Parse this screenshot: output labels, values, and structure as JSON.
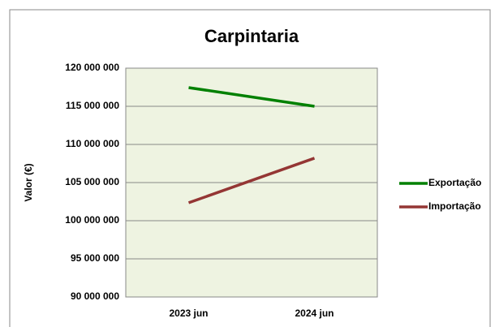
{
  "chart_data": {
    "type": "line",
    "title": "Carpintaria",
    "y_label": "Valor (€)",
    "categories": [
      "2023 jun",
      "2024 jun"
    ],
    "series": [
      {
        "name": "Exportação",
        "color": "#008000",
        "values": [
          117450000,
          115000000
        ]
      },
      {
        "name": "Importação",
        "color": "#943634",
        "values": [
          102350000,
          108200000
        ]
      }
    ],
    "ylim": [
      90000000,
      120000000
    ],
    "yticks": [
      {
        "value": 90000000,
        "label": "90 000 000"
      },
      {
        "value": 95000000,
        "label": "95 000 000"
      },
      {
        "value": 100000000,
        "label": "100 000 000"
      },
      {
        "value": 105000000,
        "label": "105 000 000"
      },
      {
        "value": 110000000,
        "label": "110 000 000"
      },
      {
        "value": 115000000,
        "label": "115 000 000"
      },
      {
        "value": 120000000,
        "label": "120 000 000"
      }
    ],
    "grid": true,
    "legend": "right",
    "plot_background": "#eef3e1"
  }
}
